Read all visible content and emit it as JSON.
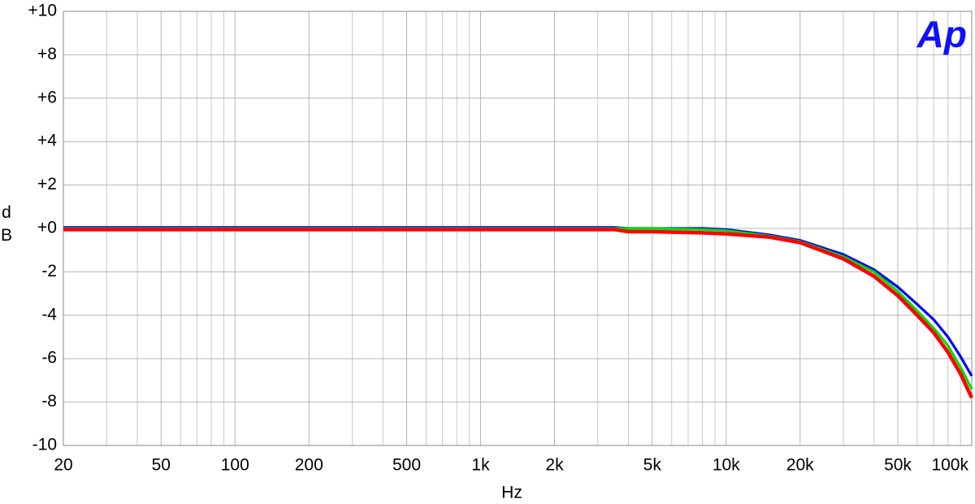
{
  "chart_data": {
    "type": "line",
    "xlabel": "Hz",
    "ylabel": "dB",
    "logo": "Ap",
    "xscale": "log",
    "grid": true,
    "x": [
      20,
      3500,
      4000,
      5000,
      8000,
      10000,
      15000,
      20000,
      30000,
      40000,
      50000,
      60000,
      70000,
      80000,
      90000,
      100000
    ],
    "series": [
      {
        "color": "#0000ff",
        "values": [
          0.05,
          0.05,
          0,
          0,
          0,
          -0.05,
          -0.3,
          -0.55,
          -1.2,
          -1.9,
          -2.7,
          -3.5,
          -4.2,
          -5.0,
          -5.9,
          -6.8
        ]
      },
      {
        "color": "#00dd00",
        "values": [
          0,
          0,
          0,
          0,
          -0.05,
          -0.1,
          -0.35,
          -0.6,
          -1.3,
          -2.0,
          -2.9,
          -3.8,
          -4.6,
          -5.4,
          -6.4,
          -7.4
        ]
      },
      {
        "color": "#ff0000",
        "values": [
          -0.05,
          -0.05,
          -0.15,
          -0.15,
          -0.2,
          -0.25,
          -0.4,
          -0.65,
          -1.4,
          -2.2,
          -3.1,
          -4.0,
          -4.8,
          -5.7,
          -6.7,
          -7.8
        ]
      }
    ],
    "xlim": [
      20,
      100000
    ],
    "xticks": [
      20,
      50,
      100,
      200,
      500,
      {
        "value": 1000,
        "label": "1k"
      },
      {
        "value": 2000,
        "label": "2k"
      },
      {
        "value": 5000,
        "label": "5k"
      },
      {
        "value": 10000,
        "label": "10k"
      },
      {
        "value": 20000,
        "label": "20k"
      },
      {
        "value": 50000,
        "label": "50k"
      },
      {
        "value": 100000,
        "label": "100k"
      }
    ],
    "xminorticks": [
      30,
      40,
      60,
      70,
      80,
      90,
      300,
      400,
      600,
      700,
      800,
      900,
      3000,
      4000,
      6000,
      7000,
      8000,
      9000,
      30000,
      40000,
      60000,
      70000,
      80000,
      90000
    ],
    "ylim": [
      -10,
      10
    ],
    "yticks": [
      {
        "value": 10,
        "label": "+10"
      },
      {
        "value": 8,
        "label": "+8"
      },
      {
        "value": 6,
        "label": "+6"
      },
      {
        "value": 4,
        "label": "+4"
      },
      {
        "value": 2,
        "label": "+2"
      },
      {
        "value": 0,
        "label": "+0"
      },
      {
        "value": -2,
        "label": "-2"
      },
      {
        "value": -4,
        "label": "-4"
      },
      {
        "value": -6,
        "label": "-6"
      },
      {
        "value": -8,
        "label": "-8"
      },
      {
        "value": -10,
        "label": "-10"
      }
    ]
  }
}
